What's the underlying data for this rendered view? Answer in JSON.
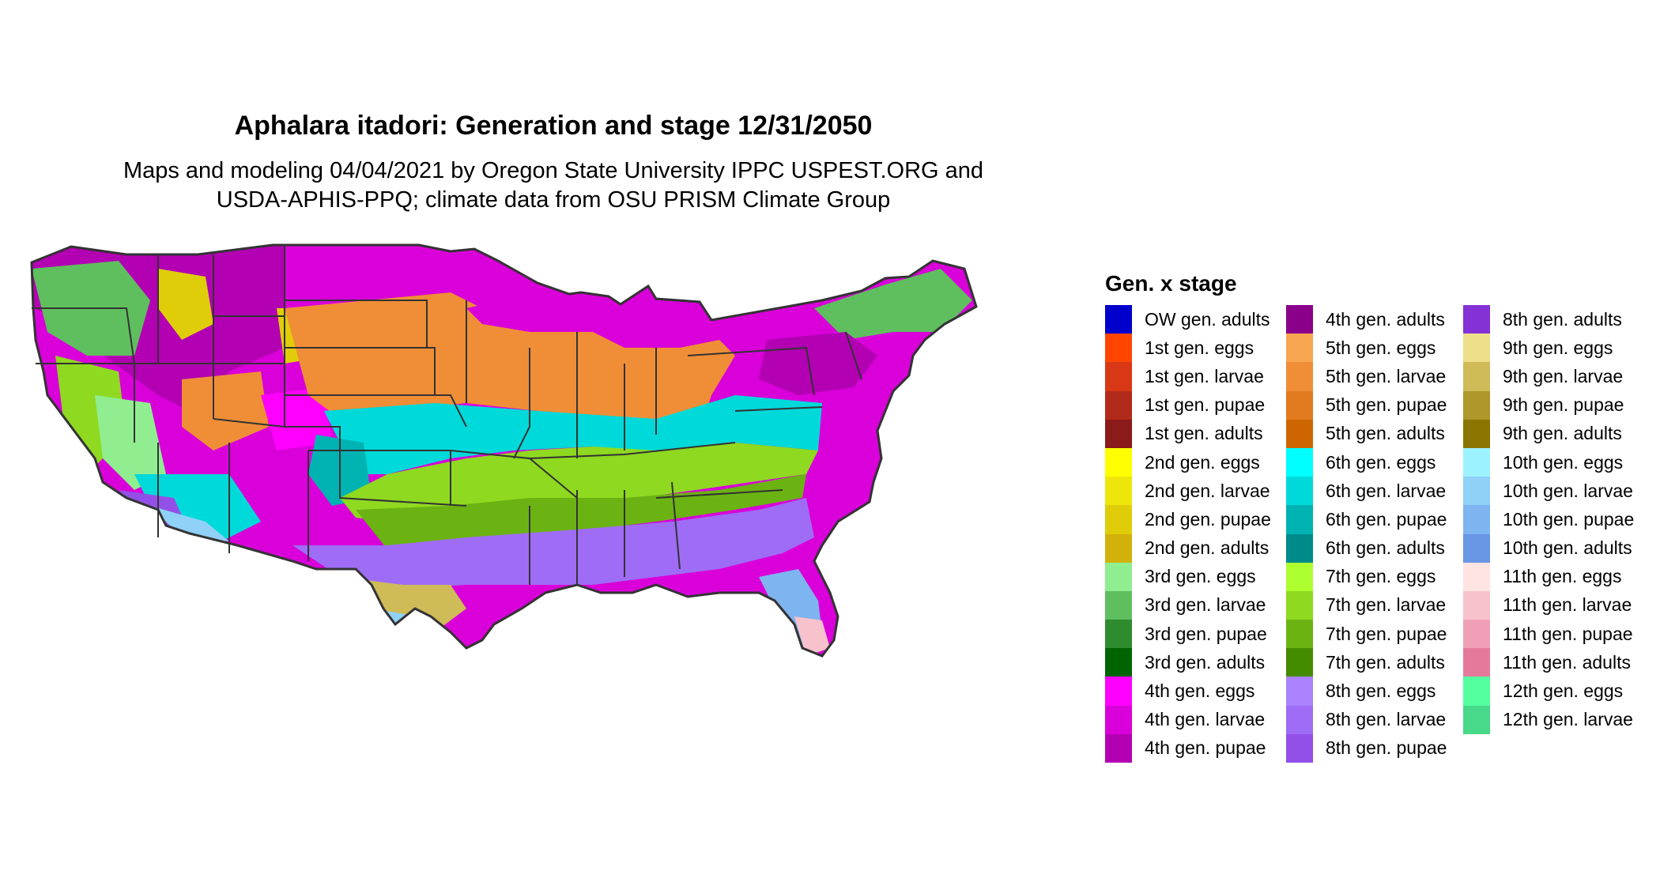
{
  "title": "Aphalara itadori: Generation and stage 12/31/2050",
  "subtitle_line1": "Maps and modeling 04/04/2021 by Oregon State University IPPC USPEST.ORG and",
  "subtitle_line2": "USDA-APHIS-PPQ; climate data from OSU PRISM Climate Group",
  "legend": {
    "title": "Gen. x stage",
    "columns": [
      [
        {
          "label": "OW gen. adults",
          "color": "#0000cd"
        },
        {
          "label": "1st gen. eggs",
          "color": "#ff4500"
        },
        {
          "label": "1st gen. larvae",
          "color": "#d93816"
        },
        {
          "label": "1st gen. pupae",
          "color": "#b22a19"
        },
        {
          "label": "1st gen. adults",
          "color": "#8b1a1a"
        },
        {
          "label": "2nd gen. eggs",
          "color": "#ffff00"
        },
        {
          "label": "2nd gen. larvae",
          "color": "#eee60a"
        },
        {
          "label": "2nd gen. pupae",
          "color": "#e0cd0a"
        },
        {
          "label": "2nd gen. adults",
          "color": "#d1b10a"
        },
        {
          "label": "3rd gen. eggs",
          "color": "#90ee90"
        },
        {
          "label": "3rd gen. larvae",
          "color": "#5fbf5f"
        },
        {
          "label": "3rd gen. pupae",
          "color": "#2e8b2e"
        },
        {
          "label": "3rd gen. adults",
          "color": "#006400"
        },
        {
          "label": "4th gen. eggs",
          "color": "#ff00ff"
        },
        {
          "label": "4th gen. larvae",
          "color": "#d900d9"
        },
        {
          "label": "4th gen. pupae",
          "color": "#b300b3"
        }
      ],
      [
        {
          "label": "4th gen. adults",
          "color": "#8b008b"
        },
        {
          "label": "5th gen. eggs",
          "color": "#f8a650"
        },
        {
          "label": "5th gen. larvae",
          "color": "#ef8e37"
        },
        {
          "label": "5th gen. pupae",
          "color": "#e27a1f"
        },
        {
          "label": "5th gen. adults",
          "color": "#cd6600"
        },
        {
          "label": "6th gen. eggs",
          "color": "#00ffff"
        },
        {
          "label": "6th gen. larvae",
          "color": "#00d9d9"
        },
        {
          "label": "6th gen. pupae",
          "color": "#00b3b3"
        },
        {
          "label": "6th gen. adults",
          "color": "#008b8b"
        },
        {
          "label": "7th gen. eggs",
          "color": "#adff2f"
        },
        {
          "label": "7th gen. larvae",
          "color": "#8fd920"
        },
        {
          "label": "7th gen. pupae",
          "color": "#6bb312"
        },
        {
          "label": "7th gen. adults",
          "color": "#458b00"
        },
        {
          "label": "8th gen. eggs",
          "color": "#ab82ff"
        },
        {
          "label": "8th gen. larvae",
          "color": "#9f6cf5"
        },
        {
          "label": "8th gen. pupae",
          "color": "#9350e8"
        }
      ],
      [
        {
          "label": "8th gen. adults",
          "color": "#8432d6"
        },
        {
          "label": "9th gen. eggs",
          "color": "#eee08b"
        },
        {
          "label": "9th gen. larvae",
          "color": "#cfbb58"
        },
        {
          "label": "9th gen. pupae",
          "color": "#ae982c"
        },
        {
          "label": "9th gen. adults",
          "color": "#8b7500"
        },
        {
          "label": "10th gen. eggs",
          "color": "#9df2ff"
        },
        {
          "label": "10th gen. larvae",
          "color": "#8fd1f7"
        },
        {
          "label": "10th gen. pupae",
          "color": "#7eb4f0"
        },
        {
          "label": "10th gen. adults",
          "color": "#6a96e6"
        },
        {
          "label": "11th gen. eggs",
          "color": "#ffe4e1"
        },
        {
          "label": "11th gen. larvae",
          "color": "#f8c2cc"
        },
        {
          "label": "11th gen. pupae",
          "color": "#f0a0b6"
        },
        {
          "label": "11th gen. adults",
          "color": "#e5799c"
        },
        {
          "label": "12th gen. eggs",
          "color": "#54ff9f"
        },
        {
          "label": "12th gen. larvae",
          "color": "#48d98a"
        }
      ]
    ]
  }
}
